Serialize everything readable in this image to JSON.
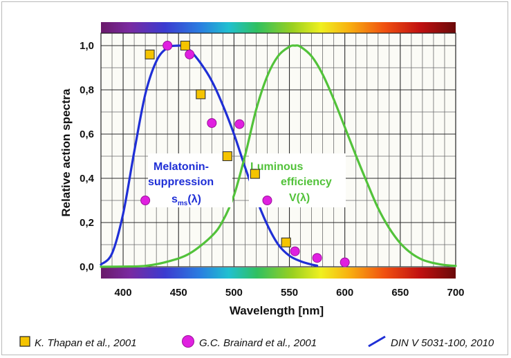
{
  "colors": {
    "melatonin_curve": "#1f2fd6",
    "luminous_curve": "#52c23a",
    "square_marker": "#f5c400",
    "circle_marker": "#e020e0",
    "melatonin_text": "#1f2fd6",
    "luminous_text": "#52c23a"
  },
  "chart_data": {
    "type": "line",
    "xlabel": "Wavelength [nm]",
    "ylabel": "Relative action spectra",
    "xlim": [
      380,
      700
    ],
    "ylim": [
      0,
      1.0
    ],
    "grid": true,
    "x_ticks": [
      400,
      450,
      500,
      550,
      600,
      650,
      700
    ],
    "y_ticks": [
      0.0,
      0.2,
      0.4,
      0.6,
      0.8,
      1.0
    ],
    "y_tick_labels": [
      "0,0",
      "0,2",
      "0,4",
      "0,6",
      "0,8",
      "1,0"
    ],
    "spectrum_bars": "top and bottom",
    "annotations": {
      "melatonin": {
        "line1": "Melatonin-",
        "line2": "suppression",
        "symbol": "s",
        "subscript": "ms",
        "arg": "(λ)"
      },
      "luminous": {
        "line1": "Luminous",
        "line2": "efficiency",
        "line3": "V(λ)"
      }
    },
    "series": [
      {
        "name": "DIN V 5031-100, 2010",
        "style": "line",
        "color": "#1f2fd6",
        "x": [
          380,
          390,
          400,
          410,
          420,
          430,
          440,
          450,
          455,
          460,
          470,
          480,
          490,
          500,
          510,
          520,
          530,
          540,
          550,
          560,
          570,
          575
        ],
        "y": [
          0.01,
          0.06,
          0.24,
          0.52,
          0.78,
          0.93,
          0.99,
          1.0,
          0.995,
          0.98,
          0.92,
          0.84,
          0.73,
          0.6,
          0.45,
          0.31,
          0.19,
          0.1,
          0.05,
          0.025,
          0.01,
          0.005
        ]
      },
      {
        "name": "V(λ)",
        "style": "line",
        "color": "#52c23a",
        "x": [
          380,
          400,
          420,
          440,
          460,
          480,
          490,
          500,
          510,
          520,
          530,
          540,
          550,
          555,
          560,
          570,
          580,
          590,
          600,
          610,
          620,
          630,
          640,
          650,
          660,
          670,
          680,
          690,
          700
        ],
        "y": [
          0.0,
          0.001,
          0.004,
          0.023,
          0.06,
          0.139,
          0.208,
          0.323,
          0.503,
          0.71,
          0.862,
          0.954,
          0.995,
          1.0,
          0.995,
          0.952,
          0.87,
          0.757,
          0.631,
          0.503,
          0.381,
          0.265,
          0.175,
          0.107,
          0.061,
          0.032,
          0.017,
          0.008,
          0.004
        ]
      },
      {
        "name": "K. Thapan et al., 2001",
        "style": "square",
        "color": "#f5c400",
        "x": [
          424,
          456,
          470,
          494,
          519,
          547
        ],
        "y": [
          0.96,
          1.0,
          0.78,
          0.5,
          0.42,
          0.11
        ]
      },
      {
        "name": "G.C. Brainard et al., 2001",
        "style": "circle",
        "color": "#e020e0",
        "x": [
          420,
          440,
          460,
          480,
          505,
          530,
          555,
          575,
          600
        ],
        "y": [
          0.3,
          1.0,
          0.96,
          0.65,
          0.645,
          0.3,
          0.07,
          0.04,
          0.02
        ]
      }
    ]
  },
  "legend": {
    "thapan": "K. Thapan et al., 2001",
    "brainard": "G.C. Brainard et al., 2001",
    "din": "DIN V 5031-100, 2010"
  }
}
